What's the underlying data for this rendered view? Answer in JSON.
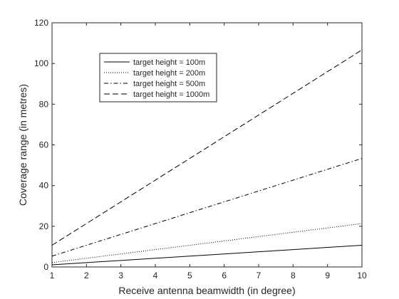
{
  "chart_data": {
    "type": "line",
    "title": "",
    "xlabel": "Receive antenna beamwidth (in degree)",
    "ylabel": "Coverage range (in metres)",
    "xlim": [
      1,
      10
    ],
    "ylim": [
      0,
      120
    ],
    "xticks": [
      "1",
      "2",
      "3",
      "4",
      "5",
      "6",
      "7",
      "8",
      "9",
      "10"
    ],
    "yticks": [
      "0",
      "20",
      "40",
      "60",
      "80",
      "100",
      "120"
    ],
    "grid": false,
    "legend_position": "top-left",
    "x": [
      1,
      2,
      3,
      4,
      5,
      6,
      7,
      8,
      9,
      10
    ],
    "series": [
      {
        "name": "target height = 100m",
        "style": "solid",
        "values": [
          1.07,
          2.13,
          3.2,
          4.27,
          5.33,
          6.4,
          7.47,
          8.53,
          9.6,
          10.67
        ]
      },
      {
        "name": "target height = 200m",
        "style": "dotted",
        "values": [
          2.13,
          4.27,
          6.4,
          8.53,
          10.67,
          12.8,
          14.93,
          17.07,
          19.2,
          21.33
        ]
      },
      {
        "name": "target height = 500m",
        "style": "dash-dot",
        "values": [
          5.33,
          10.67,
          16.0,
          21.33,
          26.67,
          32.0,
          37.33,
          42.67,
          48.0,
          53.33
        ]
      },
      {
        "name": "target height = 1000m",
        "style": "dashed",
        "values": [
          10.67,
          21.33,
          32.0,
          42.67,
          53.33,
          64.0,
          74.67,
          85.33,
          96.0,
          106.67
        ]
      }
    ],
    "colors": {
      "line": "#000000",
      "axis": "#262626",
      "background": "#ffffff"
    }
  }
}
